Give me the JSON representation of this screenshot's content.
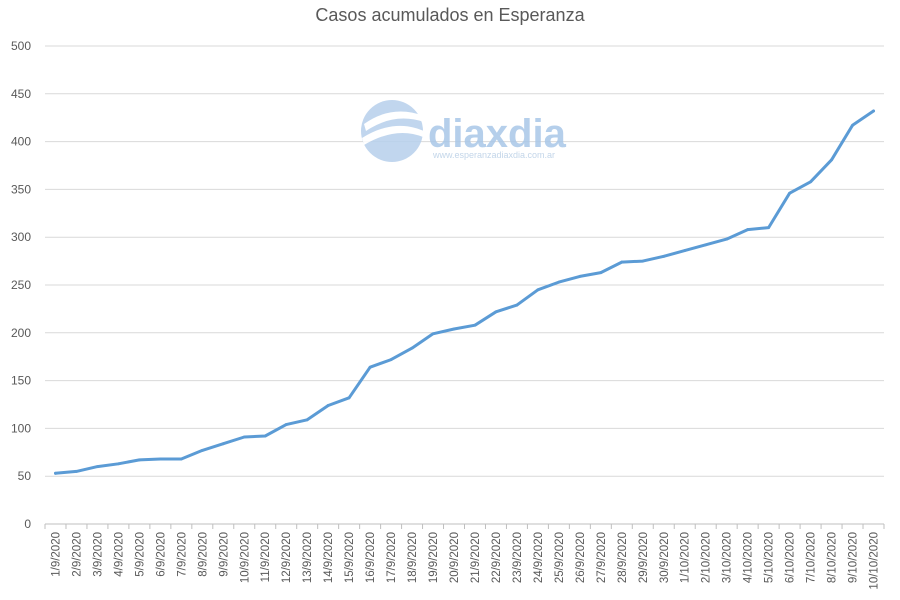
{
  "chart_data": {
    "type": "line",
    "title": "Casos acumulados en Esperanza",
    "xlabel": "",
    "ylabel": "",
    "ylim": [
      0,
      500
    ],
    "yticks": [
      0,
      50,
      100,
      150,
      200,
      250,
      300,
      350,
      400,
      450,
      500
    ],
    "grid": true,
    "legend": "none",
    "line_color": "#5b9bd5",
    "categories": [
      "1/9/2020",
      "2/9/2020",
      "3/9/2020",
      "4/9/2020",
      "5/9/2020",
      "6/9/2020",
      "7/9/2020",
      "8/9/2020",
      "9/9/2020",
      "10/9/2020",
      "11/9/2020",
      "12/9/2020",
      "13/9/2020",
      "14/9/2020",
      "15/9/2020",
      "16/9/2020",
      "17/9/2020",
      "18/9/2020",
      "19/9/2020",
      "20/9/2020",
      "21/9/2020",
      "22/9/2020",
      "23/9/2020",
      "24/9/2020",
      "25/9/2020",
      "26/9/2020",
      "27/9/2020",
      "28/9/2020",
      "29/9/2020",
      "30/9/2020",
      "1/10/2020",
      "2/10/2020",
      "3/10/2020",
      "4/10/2020",
      "5/10/2020",
      "6/10/2020",
      "7/10/2020",
      "8/10/2020",
      "9/10/2020",
      "10/10/2020"
    ],
    "values": [
      53,
      55,
      60,
      63,
      67,
      68,
      68,
      77,
      84,
      91,
      92,
      104,
      109,
      124,
      132,
      164,
      172,
      184,
      199,
      204,
      208,
      222,
      229,
      245,
      253,
      259,
      263,
      274,
      275,
      280,
      286,
      292,
      298,
      308,
      310,
      346,
      358,
      381,
      417,
      432
    ]
  },
  "watermark": {
    "brand": "diaxdia",
    "url": "www.esperanzadiaxdia.com.ar",
    "color": "#a9c7e8"
  }
}
